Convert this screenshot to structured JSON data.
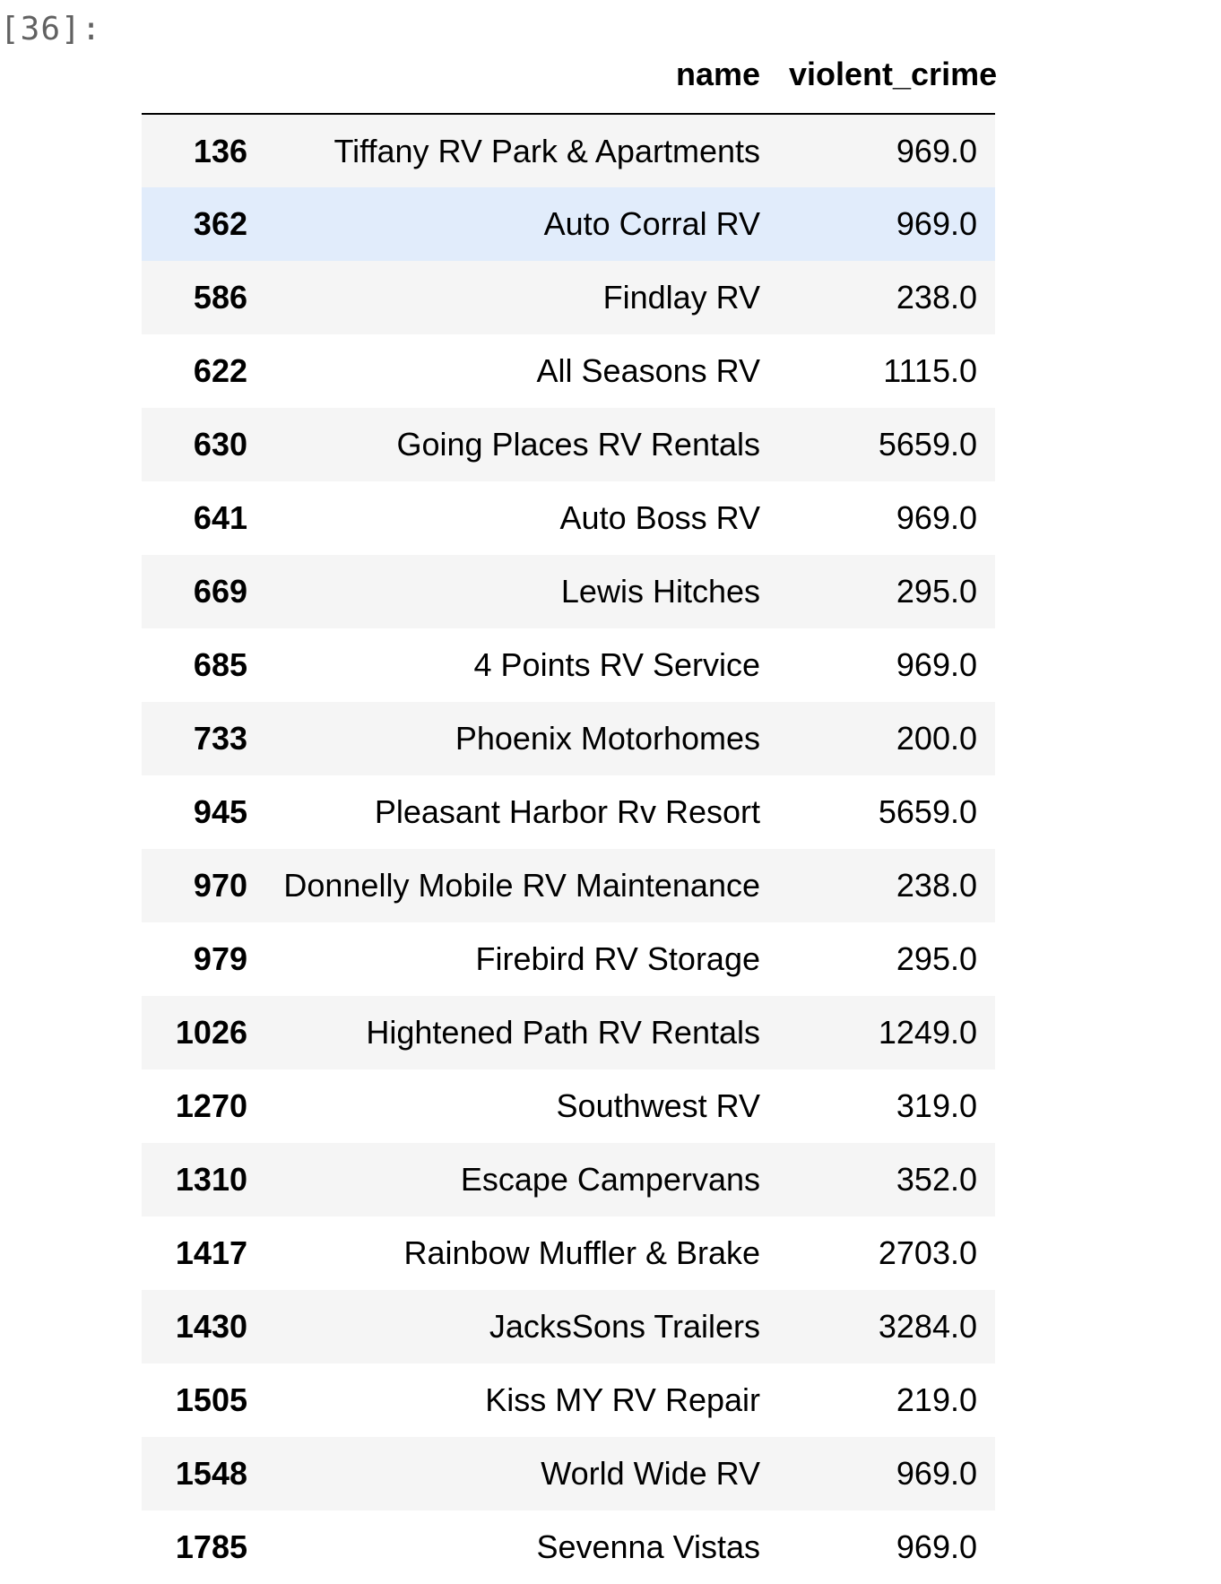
{
  "cell": {
    "prompt": "[36]:"
  },
  "table": {
    "columns": [
      "name",
      "violent_crime"
    ],
    "rows": [
      {
        "index": "136",
        "name": "Tiffany RV Park & Apartments",
        "violent_crime": "969.0"
      },
      {
        "index": "362",
        "name": "Auto Corral RV",
        "violent_crime": "969.0"
      },
      {
        "index": "586",
        "name": "Findlay RV",
        "violent_crime": "238.0"
      },
      {
        "index": "622",
        "name": "All Seasons RV",
        "violent_crime": "1115.0"
      },
      {
        "index": "630",
        "name": "Going Places RV Rentals",
        "violent_crime": "5659.0"
      },
      {
        "index": "641",
        "name": "Auto Boss RV",
        "violent_crime": "969.0"
      },
      {
        "index": "669",
        "name": "Lewis Hitches",
        "violent_crime": "295.0"
      },
      {
        "index": "685",
        "name": "4 Points RV Service",
        "violent_crime": "969.0"
      },
      {
        "index": "733",
        "name": "Phoenix Motorhomes",
        "violent_crime": "200.0"
      },
      {
        "index": "945",
        "name": "Pleasant Harbor Rv Resort",
        "violent_crime": "5659.0"
      },
      {
        "index": "970",
        "name": "Donnelly Mobile RV Maintenance",
        "violent_crime": "238.0"
      },
      {
        "index": "979",
        "name": "Firebird RV Storage",
        "violent_crime": "295.0"
      },
      {
        "index": "1026",
        "name": "Hightened Path RV Rentals",
        "violent_crime": "1249.0"
      },
      {
        "index": "1270",
        "name": "Southwest RV",
        "violent_crime": "319.0"
      },
      {
        "index": "1310",
        "name": "Escape Campervans",
        "violent_crime": "352.0"
      },
      {
        "index": "1417",
        "name": "Rainbow Muffler & Brake",
        "violent_crime": "2703.0"
      },
      {
        "index": "1430",
        "name": "JacksSons Trailers",
        "violent_crime": "3284.0"
      },
      {
        "index": "1505",
        "name": "Kiss MY RV Repair",
        "violent_crime": "219.0"
      },
      {
        "index": "1548",
        "name": "World Wide RV",
        "violent_crime": "969.0"
      },
      {
        "index": "1785",
        "name": "Sevenna Vistas",
        "violent_crime": "969.0"
      }
    ]
  },
  "colors": {
    "row_odd": "#f5f5f5",
    "row_even": "#ffffff",
    "row_hover": "#e1ecfb",
    "prompt_text": "#616161"
  }
}
